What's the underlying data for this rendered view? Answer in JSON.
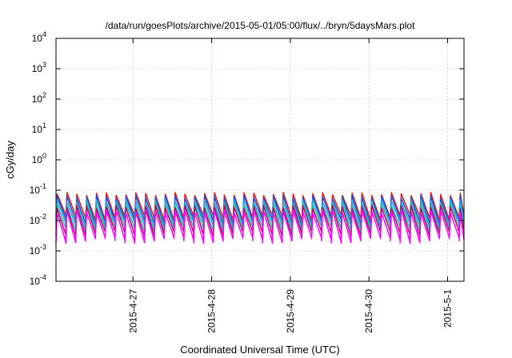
{
  "chart_data": {
    "type": "line",
    "title": "/data/run/goesPlots/archive/2015-05-01/05:00/flux/../bryn/5daysMars.plot",
    "xlabel": "Coordinated Universal Time (UTC)",
    "ylabel": "cGy/day",
    "yscale": "log",
    "ylim": [
      0.0001,
      10000
    ],
    "xlim": [
      "2015-04-26 00:30",
      "2015-05-01 05:00"
    ],
    "grid": true,
    "y_ticks": [
      {
        "base": "10",
        "exp": "-4",
        "value": 0.0001
      },
      {
        "base": "10",
        "exp": "-3",
        "value": 0.001
      },
      {
        "base": "10",
        "exp": "-2",
        "value": 0.01
      },
      {
        "base": "10",
        "exp": "-1",
        "value": 0.1
      },
      {
        "base": "10",
        "exp": "0",
        "value": 1
      },
      {
        "base": "10",
        "exp": "1",
        "value": 10
      },
      {
        "base": "10",
        "exp": "2",
        "value": 100
      },
      {
        "base": "10",
        "exp": "3",
        "value": 1000
      },
      {
        "base": "10",
        "exp": "4",
        "value": 10000
      }
    ],
    "x_ticks": [
      {
        "label": "2015-4-27",
        "value": "2015-04-27 00:00"
      },
      {
        "label": "2015-4-28",
        "value": "2015-04-28 00:00"
      },
      {
        "label": "2015-4-29",
        "value": "2015-04-29 00:00"
      },
      {
        "label": "2015-4-30",
        "value": "2015-04-30 00:00"
      },
      {
        "label": "2015-5-1",
        "value": "2015-05-01 00:00"
      }
    ],
    "pattern": {
      "description": "sawtooth",
      "period_hours": 3,
      "peak_series_values": [
        0.07,
        0.055,
        0.045,
        0.035,
        0.025,
        0.02
      ],
      "trough_series_values": [
        0.012,
        0.008,
        0.006,
        0.004,
        0.003,
        0.0018
      ]
    },
    "series": [
      {
        "color": "#e41a1c",
        "peak": 0.075,
        "trough": 0.012
      },
      {
        "color": "#1f4fd8",
        "peak": 0.06,
        "trough": 0.009
      },
      {
        "color": "#2aa0e0",
        "peak": 0.045,
        "trough": 0.007
      },
      {
        "color": "#20c0b0",
        "peak": 0.035,
        "trough": 0.005
      },
      {
        "color": "#b01060",
        "peak": 0.028,
        "trough": 0.0035
      },
      {
        "color": "#ff00ff",
        "peak": 0.02,
        "trough": 0.0022
      }
    ]
  }
}
